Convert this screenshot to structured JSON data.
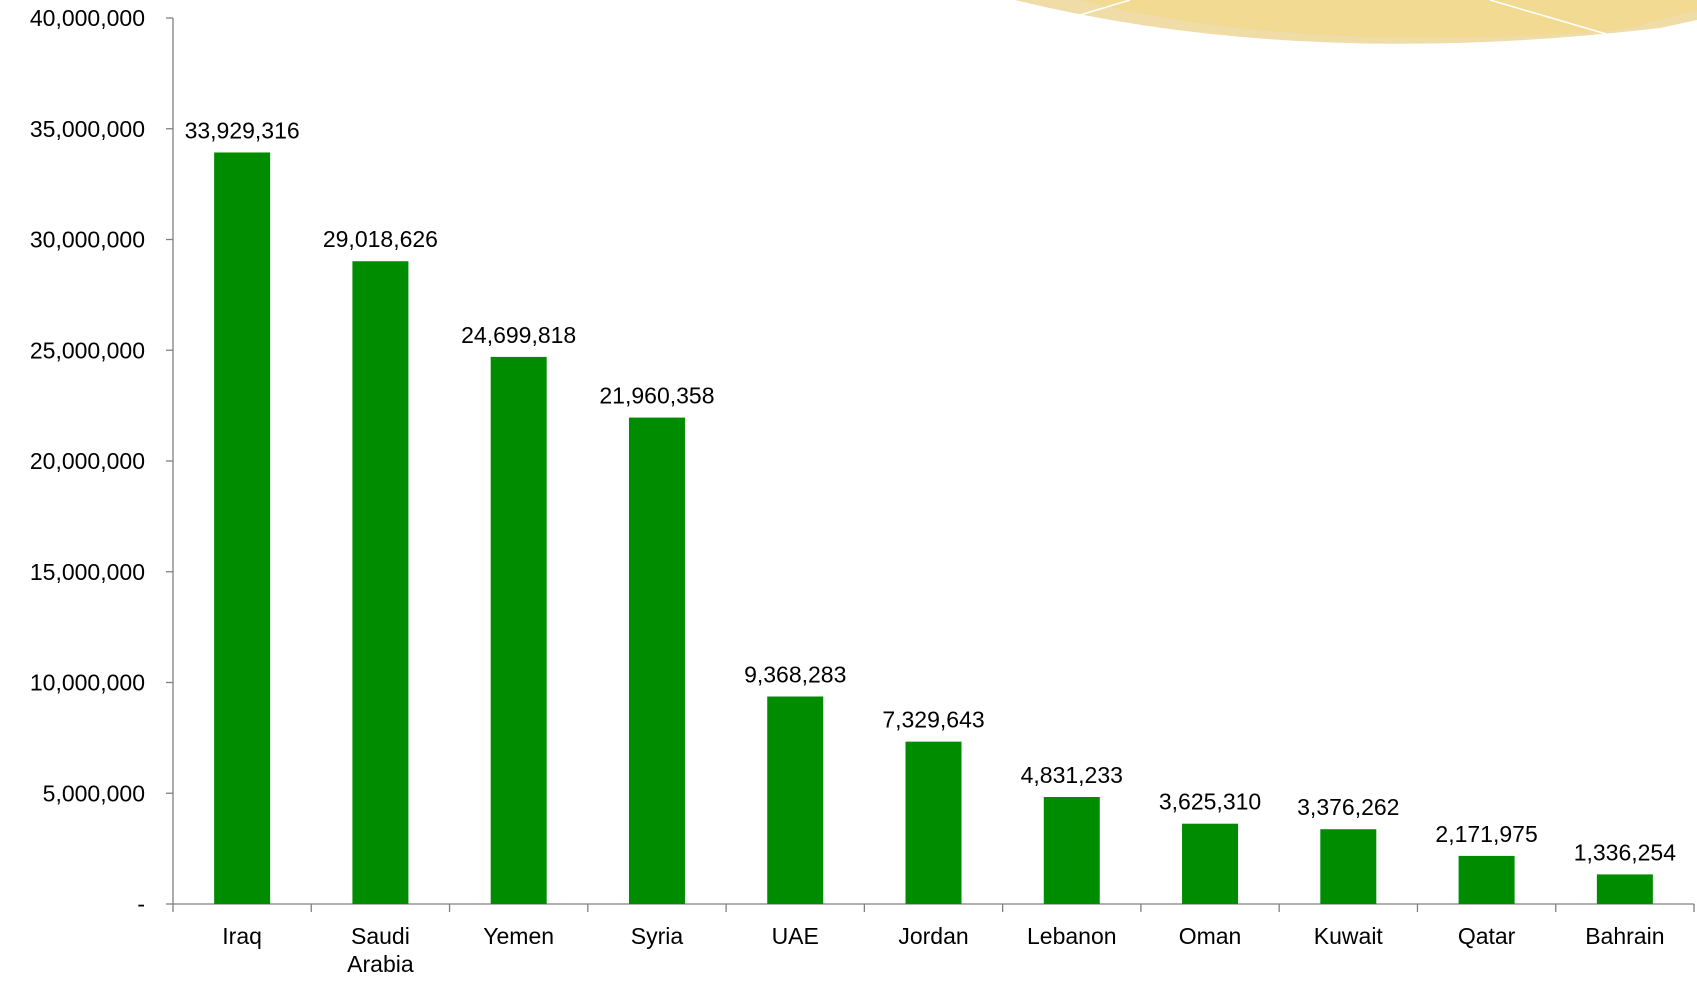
{
  "chart_data": {
    "type": "bar",
    "categories": [
      "Iraq",
      "Saudi Arabia",
      "Yemen",
      "Syria",
      "UAE",
      "Jordan",
      "Lebanon",
      "Oman",
      "Kuwait",
      "Qatar",
      "Bahrain"
    ],
    "values": [
      33929316,
      29018626,
      24699818,
      21960358,
      9368283,
      7329643,
      4831233,
      3625310,
      3376262,
      2171975,
      1336254
    ],
    "value_labels": [
      "33,929,316",
      "29,018,626",
      "24,699,818",
      "21,960,358",
      "9,368,283",
      "7,329,643",
      "4,831,233",
      "3,625,310",
      "3,376,262",
      "2,171,975",
      "1,336,254"
    ],
    "color": "#008c00",
    "ylim": [
      0,
      40000000
    ],
    "yticks": [
      {
        "value": 0,
        "label": "-"
      },
      {
        "value": 5000000,
        "label": "5,000,000"
      },
      {
        "value": 10000000,
        "label": "10,000,000"
      },
      {
        "value": 15000000,
        "label": "15,000,000"
      },
      {
        "value": 20000000,
        "label": "20,000,000"
      },
      {
        "value": 25000000,
        "label": "25,000,000"
      },
      {
        "value": 30000000,
        "label": "30,000,000"
      },
      {
        "value": 35000000,
        "label": "35,000,000"
      },
      {
        "value": 40000000,
        "label": "40,000,000"
      }
    ],
    "grid": false
  }
}
